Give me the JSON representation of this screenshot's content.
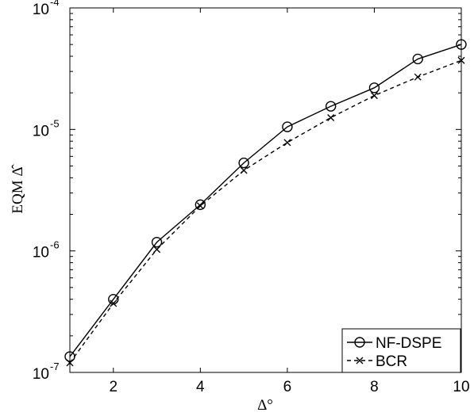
{
  "chart_data": {
    "type": "line",
    "title": "",
    "xlabel": "Δ°",
    "ylabel": "EQM Δ̂",
    "xlim": [
      1,
      10
    ],
    "ylim": [
      1e-07,
      0.0001
    ],
    "yscale": "log",
    "grid": false,
    "legend_position": "bottom-right",
    "x_ticks": [
      "2",
      "4",
      "6",
      "8",
      "10"
    ],
    "y_ticks": [
      {
        "base": "10",
        "exp": "-7"
      },
      {
        "base": "10",
        "exp": "-6"
      },
      {
        "base": "10",
        "exp": "-5"
      },
      {
        "base": "10",
        "exp": "-4"
      }
    ],
    "x": [
      1,
      2,
      3,
      4,
      5,
      6,
      7,
      8,
      9,
      10
    ],
    "series": [
      {
        "name": "NF-DSPE",
        "marker": "circle",
        "line": "solid",
        "color": "#000000",
        "values": [
          1.35e-07,
          4e-07,
          1.18e-06,
          2.4e-06,
          5.3e-06,
          1.05e-05,
          1.55e-05,
          2.2e-05,
          3.8e-05,
          5e-05
        ]
      },
      {
        "name": "BCR",
        "marker": "x",
        "line": "dashed",
        "color": "#000000",
        "values": [
          1.2e-07,
          3.7e-07,
          1.03e-06,
          2.35e-06,
          4.6e-06,
          7.8e-06,
          1.25e-05,
          1.9e-05,
          2.7e-05,
          3.7e-05
        ]
      }
    ]
  }
}
